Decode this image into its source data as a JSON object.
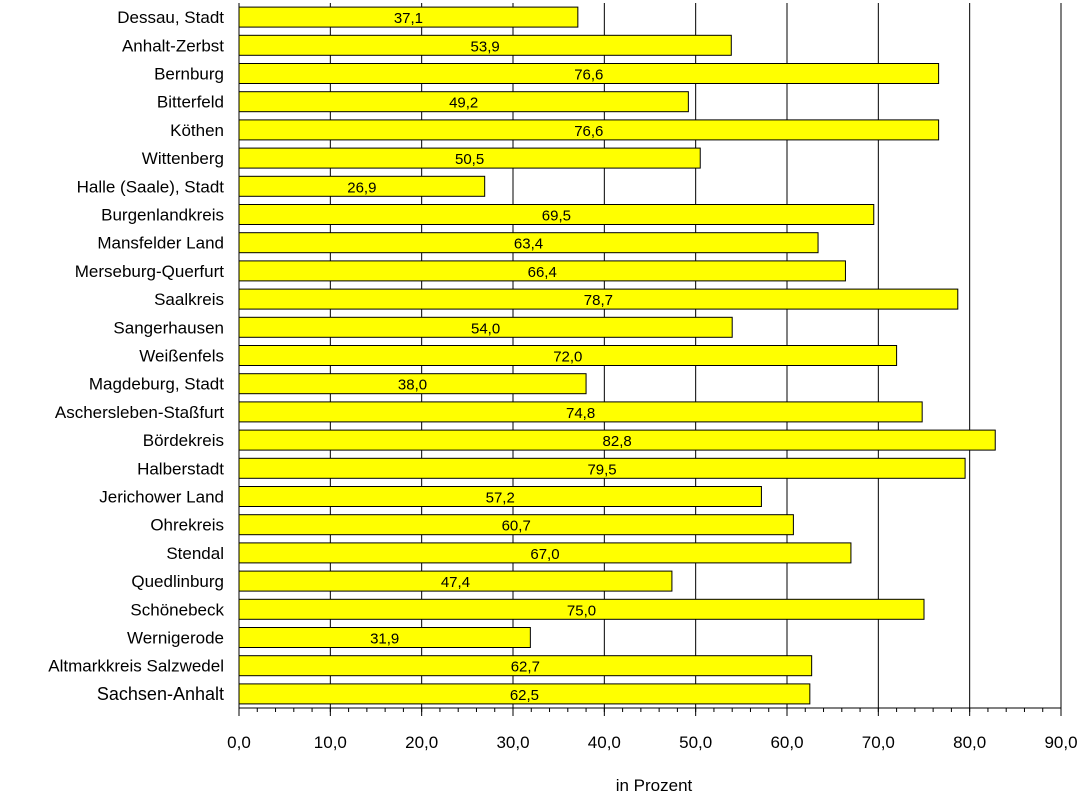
{
  "chart_data": {
    "type": "bar",
    "orientation": "horizontal",
    "categories": [
      "Dessau, Stadt",
      "Anhalt-Zerbst",
      "Bernburg",
      "Bitterfeld",
      "Köthen",
      "Wittenberg",
      "Halle (Saale), Stadt",
      "Burgenlandkreis",
      "Mansfelder Land",
      "Merseburg-Querfurt",
      "Saalkreis",
      "Sangerhausen",
      "Weißenfels",
      "Magdeburg, Stadt",
      "Aschersleben-Staßfurt",
      "Bördekreis",
      "Halberstadt",
      "Jerichower Land",
      "Ohrekreis",
      "Stendal",
      "Quedlinburg",
      "Schönebeck",
      "Wernigerode",
      "Altmarkkreis Salzwedel",
      "Sachsen-Anhalt"
    ],
    "values": [
      37.1,
      53.9,
      76.6,
      49.2,
      76.6,
      50.5,
      26.9,
      69.5,
      63.4,
      66.4,
      78.7,
      54.0,
      72.0,
      38.0,
      74.8,
      82.8,
      79.5,
      57.2,
      60.7,
      67.0,
      47.4,
      75.0,
      31.9,
      62.7,
      62.5
    ],
    "value_labels": [
      "37,1",
      "53,9",
      "76,6",
      "49,2",
      "76,6",
      "50,5",
      "26,9",
      "69,5",
      "63,4",
      "66,4",
      "78,7",
      "54,0",
      "72,0",
      "38,0",
      "74,8",
      "82,8",
      "79,5",
      "57,2",
      "60,7",
      "67,0",
      "47,4",
      "75,0",
      "31,9",
      "62,7",
      "62,5"
    ],
    "xlabel": "in Prozent",
    "xlim": [
      0,
      90
    ],
    "xticks": [
      0,
      10,
      20,
      30,
      40,
      50,
      60,
      70,
      80,
      90
    ],
    "xtick_labels": [
      "0,0",
      "10,0",
      "20,0",
      "30,0",
      "40,0",
      "50,0",
      "60,0",
      "70,0",
      "80,0",
      "90,0"
    ],
    "minor_tick_step": 2,
    "grid": true,
    "legend": "none",
    "highlighted_category": "Sachsen-Anhalt",
    "bar_color": "#ffff00",
    "bar_edge_color": "#000000",
    "grid_color": "#000000"
  }
}
